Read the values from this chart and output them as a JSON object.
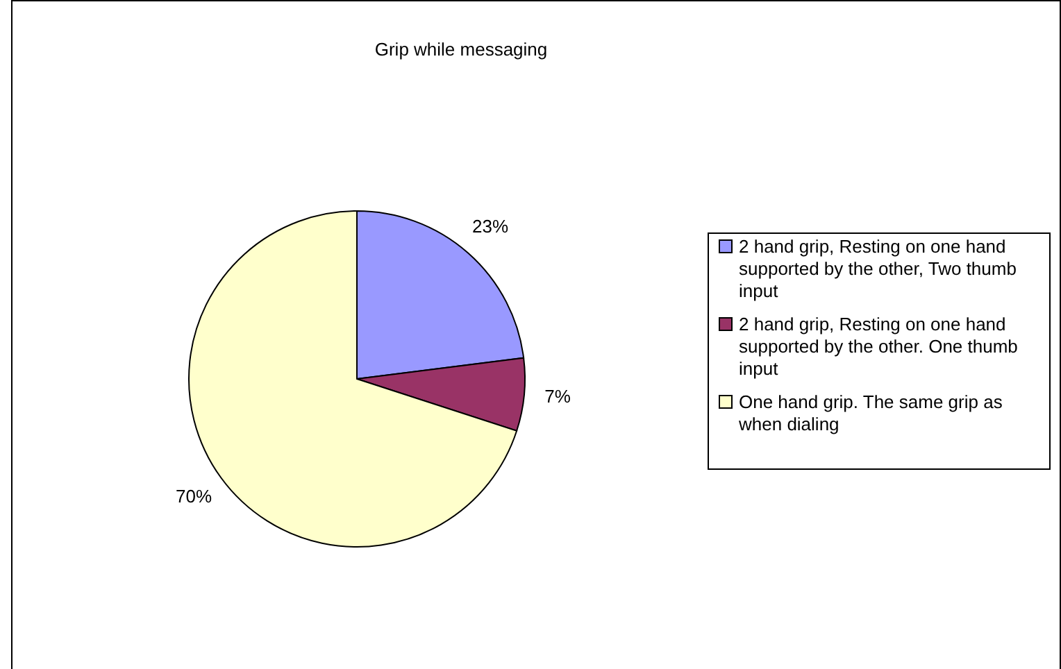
{
  "chart_data": {
    "type": "pie",
    "title": "Grip while messaging",
    "categories": [
      "2 hand grip, Resting on one hand supported by the other, Two thumb input",
      "2 hand grip, Resting on one hand supported by the other. One thumb input",
      "One hand grip. The same grip as when dialing"
    ],
    "values": [
      23,
      7,
      70
    ],
    "colors": [
      "#9999ff",
      "#993366",
      "#ffffcc"
    ],
    "value_labels": [
      "23%",
      "7%",
      "70%"
    ],
    "legend": "right"
  }
}
